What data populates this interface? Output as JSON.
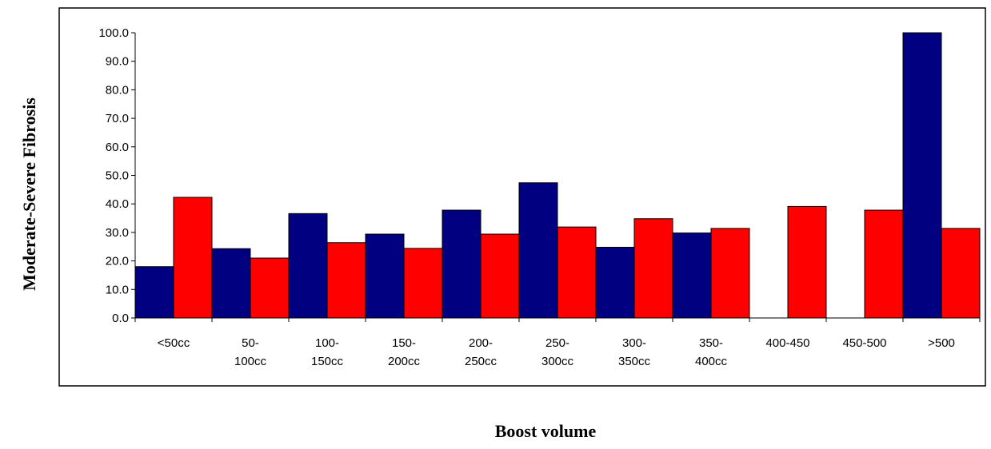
{
  "chart_data": {
    "type": "bar",
    "xlabel": "Boost volume",
    "ylabel": "Moderate-Severe Fibrosis",
    "categories": [
      [
        "<50cc"
      ],
      [
        "50-",
        "100cc"
      ],
      [
        "100-",
        "150cc"
      ],
      [
        "150-",
        "200cc"
      ],
      [
        "200-",
        "250cc"
      ],
      [
        "250-",
        "300cc"
      ],
      [
        "300-",
        "350cc"
      ],
      [
        "350-",
        "400cc"
      ],
      [
        "400-450"
      ],
      [
        "450-500"
      ],
      [
        ">500"
      ]
    ],
    "series": [
      {
        "color": "#000080",
        "values": [
          18.0,
          24.3,
          36.6,
          29.4,
          37.8,
          47.4,
          24.8,
          29.8,
          null,
          null,
          100.0
        ]
      },
      {
        "color": "#FF0000",
        "values": [
          42.3,
          21.0,
          26.4,
          24.4,
          29.4,
          31.9,
          34.8,
          31.4,
          39.1,
          37.8,
          31.4
        ]
      }
    ],
    "ylim": [
      0,
      100
    ],
    "yticks": [
      "0.0",
      "10.0",
      "20.0",
      "30.0",
      "40.0",
      "50.0",
      "60.0",
      "70.0",
      "80.0",
      "90.0",
      "100.0"
    ],
    "grid": false,
    "legend": "none"
  }
}
